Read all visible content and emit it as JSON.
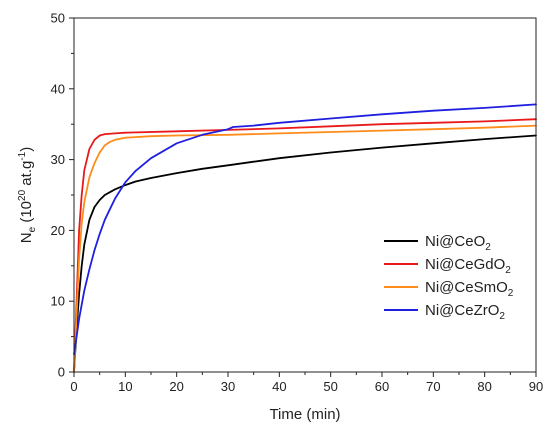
{
  "chart_data": {
    "type": "line",
    "xlabel": "Time (min)",
    "ylabel": {
      "main": "N",
      "sub": "e",
      "pre_exp": " (10",
      "exp": "20",
      "unit": " at.g",
      "unit_exp": "-1",
      "close": ")"
    },
    "xlim": [
      0,
      90
    ],
    "ylim": [
      0,
      50
    ],
    "xticks": [
      "0",
      "10",
      "20",
      "30",
      "40",
      "50",
      "60",
      "70",
      "80",
      "90"
    ],
    "yticks": [
      "0",
      "10",
      "20",
      "30",
      "40",
      "50"
    ],
    "legend_position": "right",
    "series": [
      {
        "name": "Ni@CeO2",
        "label_main": "Ni@CeO",
        "label_sub": "2",
        "color": "#000000",
        "x": [
          0,
          0.5,
          1,
          1.5,
          2,
          3,
          4,
          5,
          6,
          7,
          8,
          10,
          12,
          15,
          20,
          25,
          30,
          35,
          40,
          50,
          60,
          70,
          80,
          90
        ],
        "y": [
          0,
          6,
          11,
          15,
          18,
          21.5,
          23.3,
          24.3,
          25.0,
          25.4,
          25.8,
          26.4,
          26.9,
          27.4,
          28.1,
          28.7,
          29.2,
          29.7,
          30.2,
          31.0,
          31.7,
          32.3,
          32.9,
          33.4
        ]
      },
      {
        "name": "Ni@CeGdO2",
        "label_main": "Ni@CeGdO",
        "label_sub": "2",
        "color": "#e8191b",
        "x": [
          0,
          0.5,
          1,
          1.5,
          2,
          3,
          4,
          5,
          6,
          8,
          10,
          20,
          30,
          40,
          50,
          60,
          70,
          80,
          90
        ],
        "y": [
          0,
          10,
          20,
          25,
          28.5,
          31.5,
          32.8,
          33.4,
          33.6,
          33.7,
          33.8,
          34.0,
          34.2,
          34.4,
          34.7,
          35.0,
          35.2,
          35.4,
          35.7
        ]
      },
      {
        "name": "Ni@CeSmO2",
        "label_main": "Ni@CeSmO",
        "label_sub": "2",
        "color": "#ff8c1a",
        "x": [
          0,
          0.5,
          1,
          1.5,
          2,
          3,
          4,
          5,
          6,
          7,
          8,
          10,
          15,
          20,
          30,
          40,
          50,
          60,
          70,
          80,
          90
        ],
        "y": [
          0,
          8,
          16,
          21,
          24,
          27.5,
          29.5,
          31.0,
          32.0,
          32.5,
          32.8,
          33.1,
          33.3,
          33.4,
          33.5,
          33.7,
          33.9,
          34.1,
          34.3,
          34.5,
          34.8
        ]
      },
      {
        "name": "Ni@CeZrO2",
        "label_main": "Ni@CeZrO",
        "label_sub": "2",
        "color": "#1f1fe0",
        "x": [
          0,
          0.5,
          1,
          1.5,
          2,
          3,
          4,
          5,
          6,
          7,
          8,
          10,
          12,
          15,
          20,
          25,
          30,
          31,
          35,
          40,
          50,
          60,
          70,
          80,
          90
        ],
        "y": [
          2.5,
          5,
          7.5,
          9.5,
          11.5,
          14.5,
          17.2,
          19.5,
          21.5,
          23.0,
          24.5,
          26.8,
          28.4,
          30.2,
          32.3,
          33.5,
          34.3,
          34.6,
          34.8,
          35.2,
          35.8,
          36.4,
          36.9,
          37.3,
          37.8
        ]
      }
    ]
  }
}
